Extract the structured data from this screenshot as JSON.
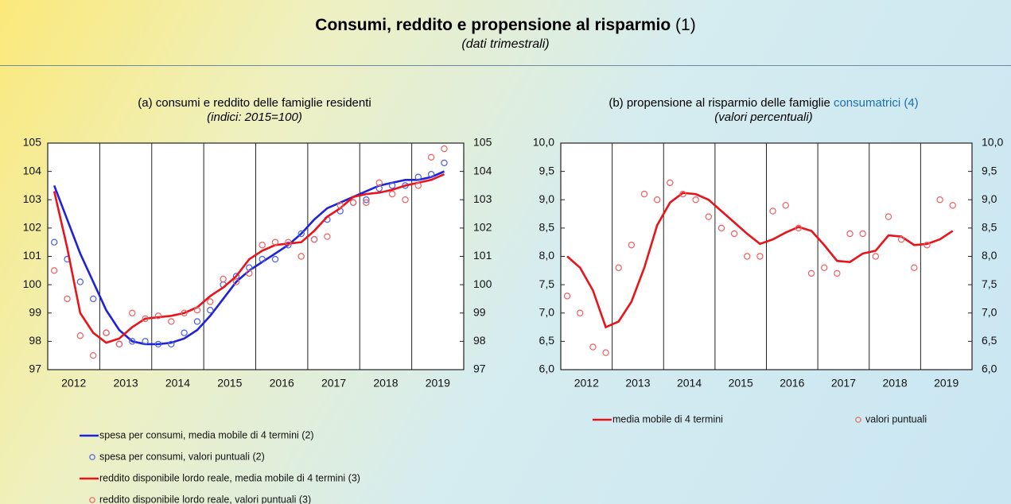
{
  "title": "Consumi, reddito e propensione al risparmio",
  "title_note": "(1)",
  "subtitle": "(dati trimestrali)",
  "chart_data": [
    {
      "type": "line",
      "title": "(a) consumi e reddito delle famiglie residenti",
      "subtitle": "(indici: 2015=100)",
      "categories": [
        "2012",
        null,
        null,
        null,
        "2013",
        null,
        null,
        null,
        "2014",
        null,
        null,
        null,
        "2015",
        null,
        null,
        null,
        "2016",
        null,
        null,
        null,
        "2017",
        null,
        null,
        null,
        "2018",
        null,
        null,
        null,
        "2019",
        null,
        null
      ],
      "ylim": [
        97,
        105
      ],
      "yticks": [
        97,
        98,
        99,
        100,
        101,
        102,
        103,
        104,
        105
      ],
      "xgrid": true,
      "right_axis": true,
      "series": [
        {
          "name": "spesa per consumi, media mobile di 4 termini (2)",
          "style": "line",
          "color": "#1f22d8",
          "values": [
            103.5,
            102.3,
            101.1,
            100.1,
            99.1,
            98.4,
            98.0,
            97.9,
            97.9,
            97.95,
            98.1,
            98.4,
            98.9,
            99.5,
            100.1,
            100.5,
            100.8,
            101.1,
            101.4,
            101.8,
            102.3,
            102.7,
            102.9,
            103.1,
            103.3,
            103.5,
            103.6,
            103.7,
            103.7,
            103.8,
            104.0
          ]
        },
        {
          "name": "spesa per consumi, valori puntuali (2)",
          "style": "points",
          "color": "#4a5ee8",
          "values": [
            101.5,
            100.9,
            100.1,
            99.5,
            98.3,
            97.9,
            98.0,
            98.0,
            97.9,
            97.9,
            98.3,
            98.7,
            99.1,
            100.0,
            100.3,
            100.6,
            100.9,
            100.9,
            101.4,
            101.8,
            101.6,
            102.3,
            102.6,
            102.9,
            103.0,
            103.4,
            103.5,
            103.5,
            103.8,
            103.9,
            104.3
          ]
        },
        {
          "name": "reddito disponibile lordo reale, media mobile di 4 termini (3)",
          "style": "line",
          "color": "#e8141b",
          "values": [
            103.3,
            101.3,
            99.0,
            98.3,
            97.95,
            98.1,
            98.5,
            98.8,
            98.85,
            98.9,
            99.0,
            99.2,
            99.6,
            99.9,
            100.3,
            100.9,
            101.2,
            101.4,
            101.45,
            101.5,
            101.9,
            102.4,
            102.7,
            103.1,
            103.2,
            103.25,
            103.35,
            103.5,
            103.6,
            103.7,
            103.9
          ]
        },
        {
          "name": "reddito disponibile lordo reale, valori puntuali (3)",
          "style": "points",
          "color": "#f06060",
          "values": [
            100.5,
            99.5,
            98.2,
            97.5,
            98.3,
            97.9,
            99.0,
            98.8,
            98.9,
            98.7,
            99.0,
            99.1,
            99.4,
            100.2,
            100.1,
            100.4,
            101.4,
            101.5,
            101.5,
            101.0,
            101.6,
            101.7,
            102.8,
            102.9,
            102.9,
            103.6,
            103.2,
            103.0,
            103.5,
            104.5,
            104.8
          ]
        }
      ]
    },
    {
      "type": "line",
      "title": "(b) propensione al risparmio delle famiglie",
      "title_highlight": "consumatrici (4)",
      "subtitle": "(valori percentuali)",
      "categories": [
        "2012",
        null,
        null,
        null,
        "2013",
        null,
        null,
        null,
        "2014",
        null,
        null,
        null,
        "2015",
        null,
        null,
        null,
        "2016",
        null,
        null,
        null,
        "2017",
        null,
        null,
        null,
        "2018",
        null,
        null,
        null,
        "2019",
        null,
        null
      ],
      "ylim": [
        6,
        10
      ],
      "yticks": [
        {
          "value": 6,
          "label": "6,0"
        },
        {
          "value": 6.5,
          "label": "6,5"
        },
        {
          "value": 7,
          "label": "7,0"
        },
        {
          "value": 7.5,
          "label": "7,5"
        },
        {
          "value": 8,
          "label": "8,0"
        },
        {
          "value": 8.5,
          "label": "8,5"
        },
        {
          "value": 9,
          "label": "9,0"
        },
        {
          "value": 9.5,
          "label": "9,5"
        },
        {
          "value": 10,
          "label": "10,0"
        }
      ],
      "xgrid": true,
      "right_axis": true,
      "series": [
        {
          "name": "media mobile di 4 termini",
          "style": "line",
          "color": "#e8141b",
          "values": [
            8.0,
            7.8,
            7.4,
            6.75,
            6.85,
            7.2,
            7.8,
            8.55,
            8.95,
            9.12,
            9.1,
            9.0,
            8.8,
            8.6,
            8.4,
            8.22,
            8.3,
            8.42,
            8.52,
            8.45,
            8.2,
            7.92,
            7.9,
            8.05,
            8.1,
            8.37,
            8.35,
            8.2,
            8.22,
            8.3,
            8.45
          ]
        },
        {
          "name": "valori puntuali",
          "style": "points",
          "color": "#f06060",
          "values": [
            7.3,
            7.0,
            6.4,
            6.3,
            7.8,
            8.2,
            9.1,
            9.0,
            9.3,
            9.1,
            9.0,
            8.7,
            8.5,
            8.4,
            8.0,
            8.0,
            8.8,
            8.9,
            8.5,
            7.7,
            7.8,
            7.7,
            8.4,
            8.4,
            8.0,
            8.7,
            8.3,
            7.8,
            8.2,
            9.0,
            8.9
          ]
        }
      ]
    }
  ]
}
